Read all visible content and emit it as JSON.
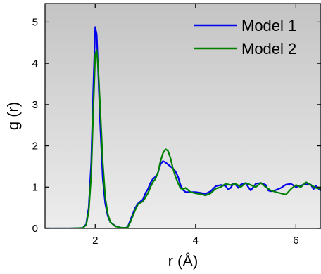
{
  "chart_data": {
    "type": "line",
    "title": "",
    "xlabel": "r (Å)",
    "ylabel": "g (r)",
    "xlim": [
      1.0,
      6.5
    ],
    "ylim": [
      0,
      5.45
    ],
    "xticks": [
      2,
      4,
      6
    ],
    "yticks": [
      0,
      1,
      2,
      3,
      4,
      5
    ],
    "background": "gray-gradient",
    "grid": false,
    "legend_position": "top-right",
    "series": [
      {
        "name": "Model 1",
        "color": "#0000ee",
        "points": [
          [
            1.0,
            0
          ],
          [
            1.5,
            0
          ],
          [
            1.75,
            0.01
          ],
          [
            1.82,
            0.1
          ],
          [
            1.87,
            0.5
          ],
          [
            1.92,
            1.6
          ],
          [
            1.96,
            3.3
          ],
          [
            2.0,
            4.88
          ],
          [
            2.03,
            4.7
          ],
          [
            2.06,
            3.8
          ],
          [
            2.1,
            2.5
          ],
          [
            2.15,
            1.2
          ],
          [
            2.2,
            0.6
          ],
          [
            2.25,
            0.3
          ],
          [
            2.3,
            0.15
          ],
          [
            2.4,
            0.06
          ],
          [
            2.5,
            0.02
          ],
          [
            2.6,
            0.01
          ],
          [
            2.65,
            0.04
          ],
          [
            2.7,
            0.2
          ],
          [
            2.75,
            0.35
          ],
          [
            2.8,
            0.5
          ],
          [
            2.85,
            0.6
          ],
          [
            2.9,
            0.65
          ],
          [
            2.95,
            0.7
          ],
          [
            3.0,
            0.85
          ],
          [
            3.05,
            0.95
          ],
          [
            3.1,
            1.1
          ],
          [
            3.15,
            1.2
          ],
          [
            3.2,
            1.25
          ],
          [
            3.25,
            1.35
          ],
          [
            3.3,
            1.55
          ],
          [
            3.35,
            1.63
          ],
          [
            3.4,
            1.6
          ],
          [
            3.45,
            1.55
          ],
          [
            3.5,
            1.5
          ],
          [
            3.55,
            1.45
          ],
          [
            3.6,
            1.38
          ],
          [
            3.65,
            1.25
          ],
          [
            3.7,
            1.05
          ],
          [
            3.75,
            0.93
          ],
          [
            3.8,
            0.88
          ],
          [
            3.9,
            0.88
          ],
          [
            4.0,
            0.88
          ],
          [
            4.1,
            0.86
          ],
          [
            4.2,
            0.84
          ],
          [
            4.3,
            0.9
          ],
          [
            4.4,
            1.02
          ],
          [
            4.5,
            1.05
          ],
          [
            4.6,
            1.03
          ],
          [
            4.65,
            0.94
          ],
          [
            4.7,
            0.98
          ],
          [
            4.75,
            1.08
          ],
          [
            4.8,
            1.06
          ],
          [
            4.85,
            0.98
          ],
          [
            4.9,
            1.06
          ],
          [
            5.0,
            1.1
          ],
          [
            5.05,
            1.0
          ],
          [
            5.1,
            0.92
          ],
          [
            5.15,
            1.0
          ],
          [
            5.2,
            1.08
          ],
          [
            5.3,
            1.1
          ],
          [
            5.4,
            1.05
          ],
          [
            5.45,
            0.92
          ],
          [
            5.5,
            0.9
          ],
          [
            5.6,
            0.93
          ],
          [
            5.7,
            0.98
          ],
          [
            5.8,
            1.06
          ],
          [
            5.9,
            1.08
          ],
          [
            6.0,
            1.0
          ],
          [
            6.1,
            1.04
          ],
          [
            6.2,
            1.07
          ],
          [
            6.3,
            1.06
          ],
          [
            6.35,
            0.95
          ],
          [
            6.4,
            1.03
          ],
          [
            6.45,
            0.96
          ],
          [
            6.5,
            0.92
          ]
        ]
      },
      {
        "name": "Model 2",
        "color": "#008000",
        "points": [
          [
            1.0,
            0
          ],
          [
            1.5,
            0
          ],
          [
            1.75,
            0.01
          ],
          [
            1.82,
            0.08
          ],
          [
            1.87,
            0.4
          ],
          [
            1.92,
            1.3
          ],
          [
            1.96,
            2.8
          ],
          [
            2.0,
            4.2
          ],
          [
            2.03,
            4.32
          ],
          [
            2.06,
            3.9
          ],
          [
            2.1,
            2.9
          ],
          [
            2.15,
            1.6
          ],
          [
            2.2,
            0.75
          ],
          [
            2.25,
            0.35
          ],
          [
            2.3,
            0.15
          ],
          [
            2.4,
            0.05
          ],
          [
            2.5,
            0.02
          ],
          [
            2.6,
            0.01
          ],
          [
            2.65,
            0.03
          ],
          [
            2.7,
            0.15
          ],
          [
            2.75,
            0.3
          ],
          [
            2.8,
            0.45
          ],
          [
            2.85,
            0.58
          ],
          [
            2.9,
            0.62
          ],
          [
            2.95,
            0.65
          ],
          [
            3.0,
            0.75
          ],
          [
            3.05,
            0.85
          ],
          [
            3.1,
            1.0
          ],
          [
            3.15,
            1.12
          ],
          [
            3.2,
            1.2
          ],
          [
            3.25,
            1.35
          ],
          [
            3.3,
            1.62
          ],
          [
            3.35,
            1.82
          ],
          [
            3.4,
            1.92
          ],
          [
            3.45,
            1.88
          ],
          [
            3.5,
            1.7
          ],
          [
            3.55,
            1.45
          ],
          [
            3.6,
            1.25
          ],
          [
            3.65,
            1.1
          ],
          [
            3.7,
            0.97
          ],
          [
            3.75,
            0.95
          ],
          [
            3.8,
            0.98
          ],
          [
            3.9,
            0.88
          ],
          [
            4.0,
            0.85
          ],
          [
            4.1,
            0.83
          ],
          [
            4.2,
            0.8
          ],
          [
            4.3,
            0.85
          ],
          [
            4.4,
            0.96
          ],
          [
            4.5,
            1.0
          ],
          [
            4.6,
            1.08
          ],
          [
            4.7,
            1.05
          ],
          [
            4.8,
            1.08
          ],
          [
            4.9,
            1.0
          ],
          [
            5.0,
            1.1
          ],
          [
            5.1,
            1.05
          ],
          [
            5.2,
            1.0
          ],
          [
            5.3,
            1.1
          ],
          [
            5.4,
            1.0
          ],
          [
            5.5,
            0.92
          ],
          [
            5.6,
            0.88
          ],
          [
            5.7,
            0.85
          ],
          [
            5.8,
            0.82
          ],
          [
            5.9,
            0.95
          ],
          [
            6.0,
            1.05
          ],
          [
            6.1,
            1.0
          ],
          [
            6.2,
            1.12
          ],
          [
            6.3,
            1.05
          ],
          [
            6.4,
            0.98
          ],
          [
            6.5,
            0.96
          ]
        ]
      }
    ]
  }
}
